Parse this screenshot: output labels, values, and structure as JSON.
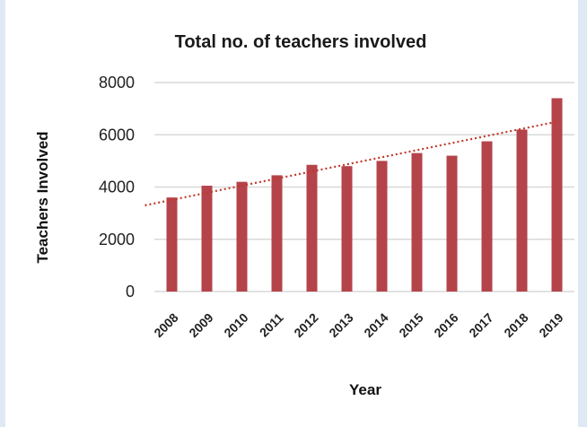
{
  "chart_data": {
    "type": "bar",
    "title": "Total no. of teachers involved",
    "xlabel": "Year",
    "ylabel": "Teachers Involved",
    "categories": [
      "2008",
      "2009",
      "2010",
      "2011",
      "2012",
      "2013",
      "2014",
      "2015",
      "2016",
      "2017",
      "2018",
      "2019"
    ],
    "values": [
      3600,
      4050,
      4200,
      4450,
      4850,
      4800,
      5000,
      5300,
      5200,
      5750,
      6200,
      7400
    ],
    "ylim": [
      0,
      8000
    ],
    "yticks": [
      0,
      2000,
      4000,
      6000,
      8000
    ],
    "grid": true,
    "legend": "none",
    "trendline": {
      "type": "linear",
      "style": "dotted",
      "start": 3300,
      "end": 6500
    },
    "colors": {
      "bar": "#b5434a",
      "trend": "#c0392b",
      "grid": "#d9d9d9"
    }
  }
}
